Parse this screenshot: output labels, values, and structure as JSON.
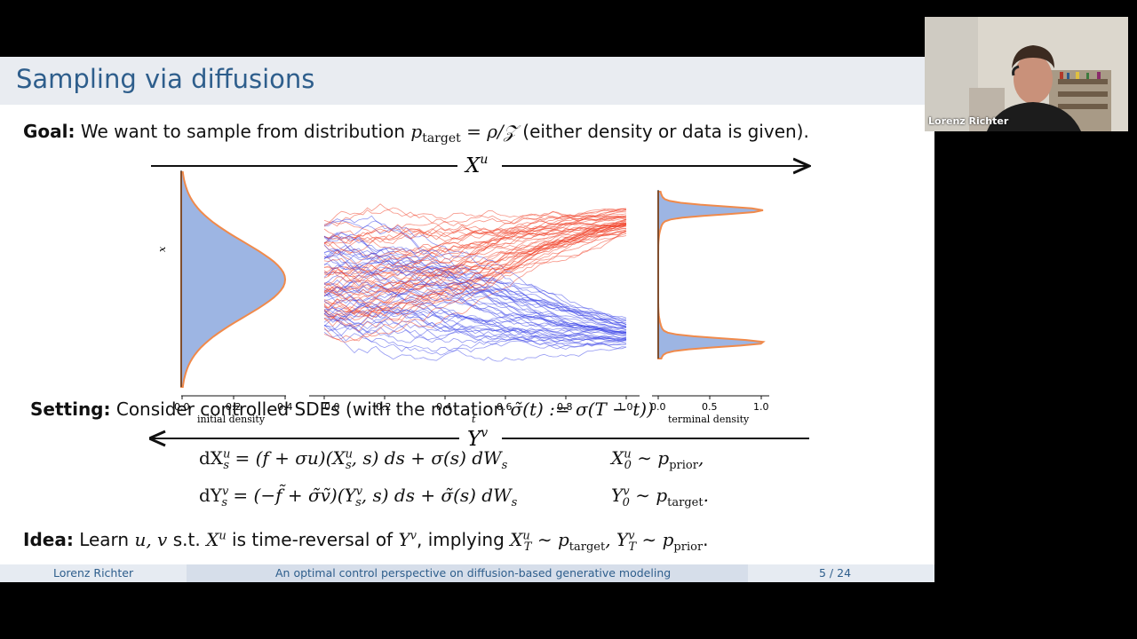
{
  "slide": {
    "title": "Sampling via diffusions",
    "goal_label": "Goal:",
    "goal_text_1": "We want to sample from distribution",
    "goal_p": "p",
    "goal_sub": "target",
    "goal_eq": "= ρ/𝒵",
    "goal_text_2": "(either density or data is given).",
    "arrow_top_label": "X",
    "arrow_top_sup": "u",
    "arrow_bottom_label": "Y",
    "arrow_bottom_sup": "v",
    "figure": {
      "initial_ylabel": "x",
      "initial_ticks": [
        "0.0",
        "0.2",
        "0.4"
      ],
      "initial_xlabel": "initial density",
      "paths_ticks": [
        "0.0",
        "0.2",
        "0.4",
        "0.6",
        "0.8",
        "1.0"
      ],
      "paths_xlabel": "t",
      "terminal_ticks": [
        "0.0",
        "0.5",
        "1.0"
      ],
      "terminal_xlabel": "terminal density",
      "colors": {
        "red": "#f03c22",
        "blue": "#3c46e8",
        "density_fill": "#9db5e3",
        "density_edge": "#f08a4b"
      }
    },
    "setting_label": "Setting:",
    "setting_text_1": "Consider controlled SDEs (with the notation",
    "setting_sigma": "σ̃(t) := σ(T − t))",
    "eq1": {
      "lhs": "dX",
      "lhs_sup": "u",
      "lhs_sub": "s",
      "rhs": " = (f + σu)(X",
      "rhs_sup": "u",
      "rhs_sub": "s",
      "rhs_2": ", s) ds + σ(s) dW",
      "rhs_sub2": "s",
      "tail": "X",
      "tail_sup": "u",
      "tail_sub": "0",
      "tail_2": " ∼ p",
      "tail_sub2": "prior",
      "tail_end": ","
    },
    "eq2": {
      "lhs": "dY",
      "lhs_sup": "v",
      "lhs_sub": "s",
      "rhs": " = (−f̃ + σ̃ṽ)(Y",
      "rhs_sup": "v",
      "rhs_sub": "s",
      "rhs_2": ", s) ds + σ̃(s) dW",
      "rhs_sub2": "s",
      "tail": "Y",
      "tail_sup": "v",
      "tail_sub": "0",
      "tail_2": " ∼ p",
      "tail_sub2": "target",
      "tail_end": "."
    },
    "idea_label": "Idea:",
    "idea_text_1": "Learn",
    "idea_uv": "u, v",
    "idea_text_2": "s.t.",
    "idea_X": "X",
    "idea_X_sup": "u",
    "idea_text_3": "is time-reversal of",
    "idea_Y": "Y",
    "idea_Y_sup": "v",
    "idea_text_4": ", implying",
    "idea_XT": "X",
    "idea_XT_sup": "u",
    "idea_XT_sub": "T",
    "idea_p1": "∼ p",
    "idea_p1_sub": "target",
    "idea_YT": ", Y",
    "idea_YT_sup": "v",
    "idea_YT_sub": "T",
    "idea_p2": "∼ p",
    "idea_p2_sub": "prior",
    "idea_end": "."
  },
  "footer": {
    "author": "Lorenz Richter",
    "talk_title": "An optimal control perspective on diffusion-based generative modeling",
    "page": "5 / 24"
  },
  "webcam": {
    "name": "Lorenz Richter"
  }
}
